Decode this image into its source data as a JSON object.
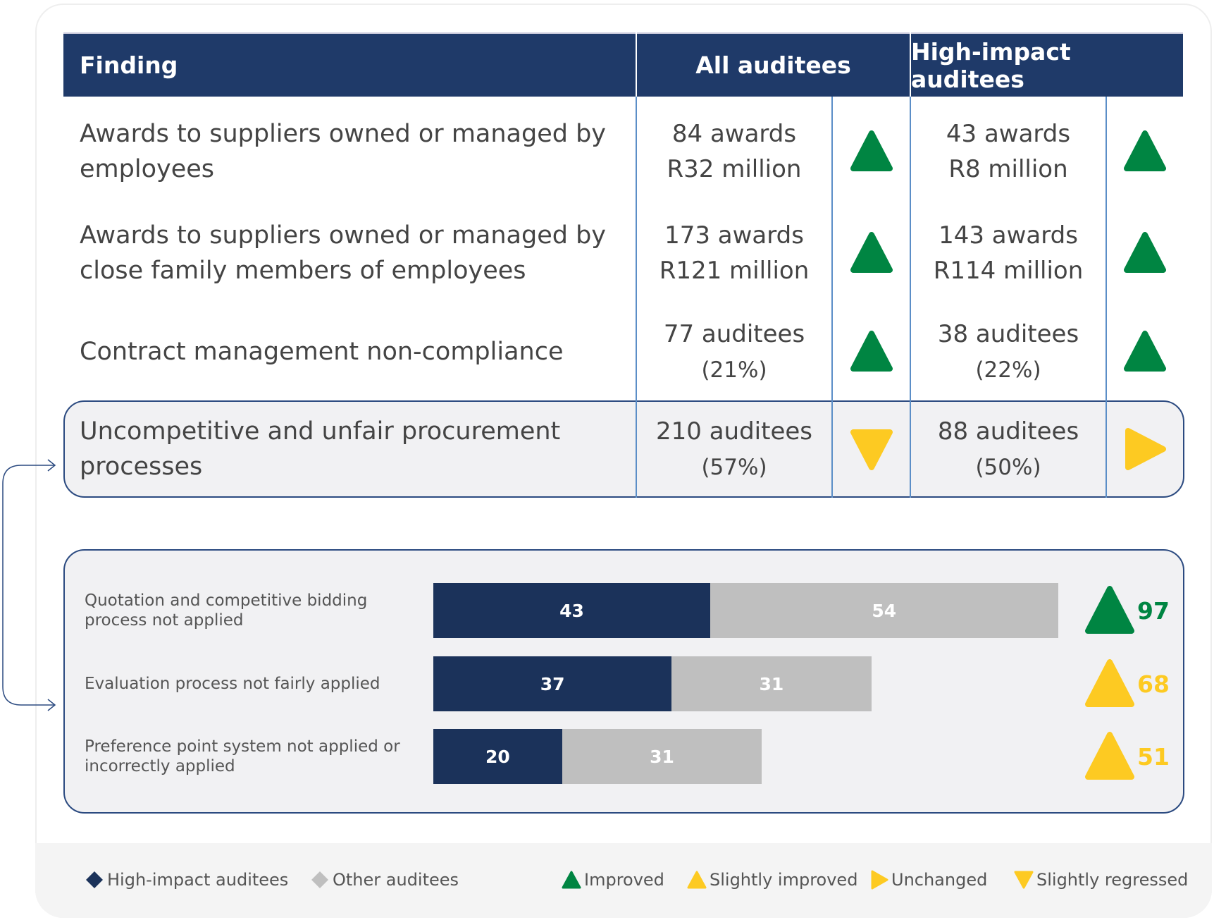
{
  "header": {
    "finding": "Finding",
    "all": "All auditees",
    "high": "High-impact auditees"
  },
  "rows": [
    {
      "finding_l1": "Awards to suppliers owned or managed by",
      "finding_l2": "employees",
      "all_l1": "84 awards",
      "all_l2": "R32 million",
      "all_trend": "improved",
      "high_l1": "43 awards",
      "high_l2": "R8 million",
      "high_trend": "improved"
    },
    {
      "finding_l1": "Awards to suppliers owned or managed by",
      "finding_l2": "close family members of employees",
      "all_l1": "173 awards",
      "all_l2": "R121 million",
      "all_trend": "improved",
      "high_l1": "143 awards",
      "high_l2": "R114 million",
      "high_trend": "improved"
    },
    {
      "finding_l1": "Contract management non-compliance",
      "all_l1": "77 auditees",
      "all_l2": "(21%)",
      "all_trend": "improved",
      "high_l1": "38 auditees",
      "high_l2": "(22%)",
      "high_trend": "improved"
    },
    {
      "finding_l1": "Uncompetitive and unfair procurement",
      "finding_l2": "processes",
      "all_l1": "210 auditees",
      "all_l2": "(57%)",
      "all_trend": "slightly regressed",
      "high_l1": "88 auditees",
      "high_l2": "(50%)",
      "high_trend": "unchanged"
    }
  ],
  "chart_data": {
    "type": "bar",
    "orientation": "horizontal",
    "stacked": true,
    "categories": [
      "Quotation and competitive bidding process not applied",
      "Evaluation process not fairly applied",
      "Preference point system not applied or incorrectly applied"
    ],
    "category_lines": [
      [
        "Quotation and competitive bidding",
        "process not applied"
      ],
      [
        "Evaluation process not fairly applied"
      ],
      [
        "Preference point system not applied or",
        "incorrectly applied"
      ]
    ],
    "series": [
      {
        "name": "High-impact auditees",
        "values": [
          43,
          37,
          20
        ],
        "color": "#1b325a"
      },
      {
        "name": "Other auditees",
        "values": [
          54,
          31,
          31
        ],
        "color": "#bfbfbf"
      }
    ],
    "totals": [
      "97",
      "68",
      "51"
    ],
    "total_trends": [
      "improved",
      "slightly improved",
      "slightly improved"
    ]
  },
  "legend": {
    "high": "High-impact auditees",
    "other": "Other auditees",
    "improved": "Improved",
    "slightly_improved": "Slightly improved",
    "unchanged": "Unchanged",
    "slightly_regressed": "Slightly regressed"
  },
  "colors": {
    "navy": "#1f3a69",
    "green": "#008542",
    "yellow": "#fdca22",
    "grey": "#bfbfbf"
  }
}
